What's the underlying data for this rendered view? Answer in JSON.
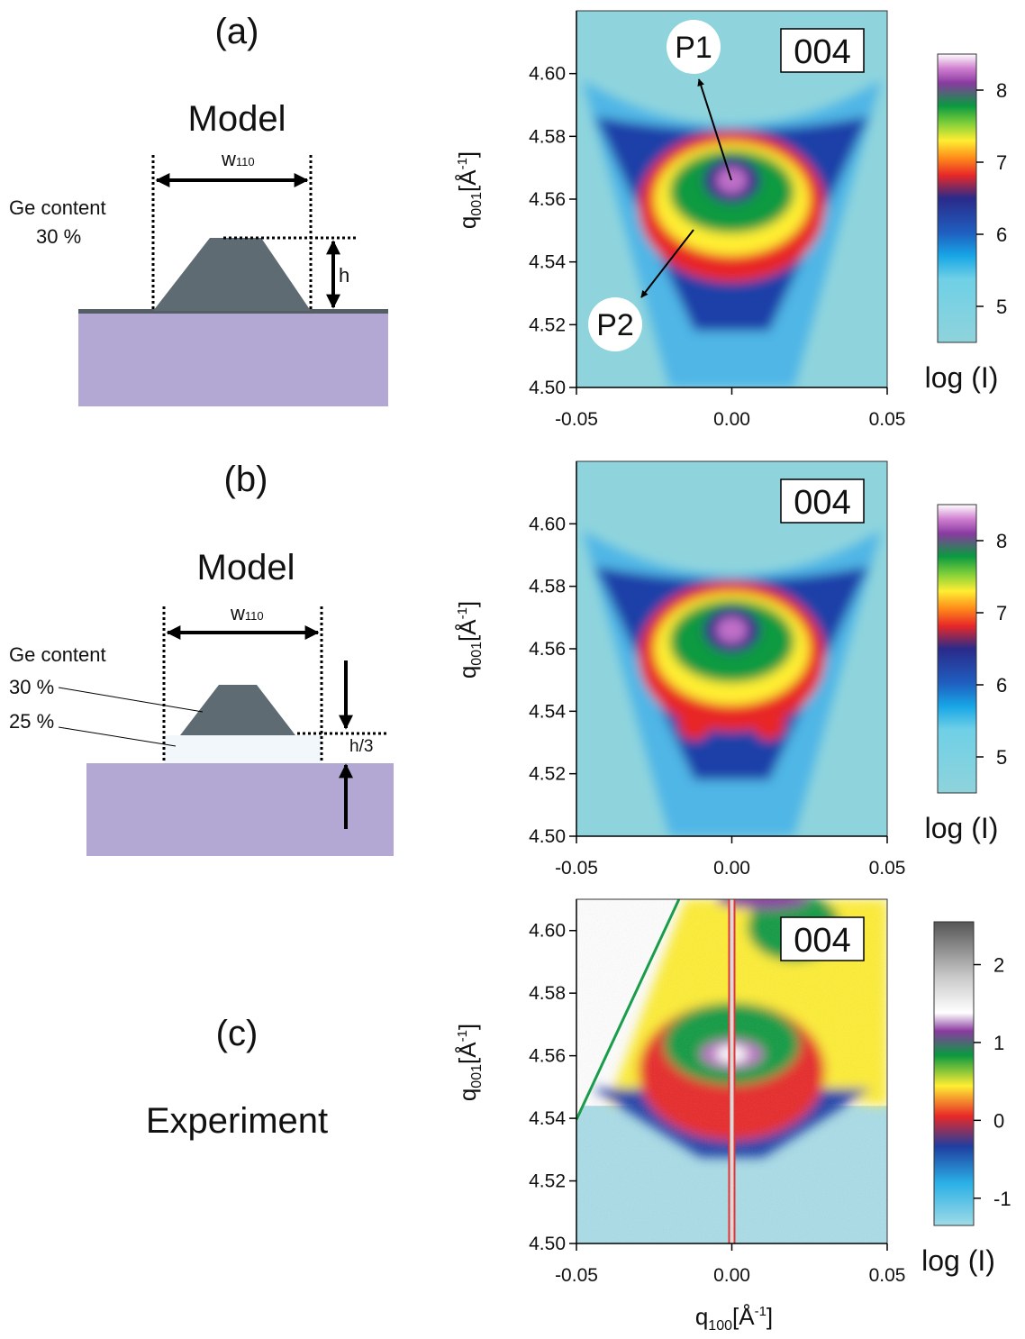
{
  "panels": [
    {
      "label": "(a)",
      "title": "Model",
      "width_label": {
        "base": "w",
        "sub": "110"
      },
      "ge_label": "Ge content",
      "contents": [
        "30 %"
      ],
      "height_label": "h",
      "plot": {
        "tag": "004",
        "annotations": [
          "P1",
          "P2"
        ],
        "xlim": [
          -0.05,
          0.05
        ],
        "xticks": [
          -0.05,
          {
            "value": 0,
            "label": "0.00"
          },
          0.05
        ],
        "ylim": [
          4.5,
          4.62
        ],
        "yticks": [
          {
            "value": 4.5,
            "label": "4.50"
          },
          4.52,
          4.54,
          4.56,
          4.58,
          {
            "value": 4.6,
            "label": "4.60"
          }
        ],
        "ylabel": {
          "base": "q",
          "sub": "001",
          "unit": "[Å",
          "sup": "-1",
          "close": "]"
        },
        "colorbar": {
          "lim": [
            4.5,
            8.5
          ],
          "ticks": [
            5,
            6,
            7,
            8
          ],
          "label": "log (I)"
        }
      }
    },
    {
      "label": "(b)",
      "title": "Model",
      "width_label": {
        "base": "w",
        "sub": "110"
      },
      "ge_label": "Ge content",
      "contents": [
        "30 %",
        "25 %"
      ],
      "height_label": "h/3",
      "plot": {
        "tag": "004",
        "xlim": [
          -0.05,
          0.05
        ],
        "xticks": [
          -0.05,
          {
            "value": 0,
            "label": "0.00"
          },
          0.05
        ],
        "ylim": [
          4.5,
          4.62
        ],
        "yticks": [
          {
            "value": 4.5,
            "label": "4.50"
          },
          4.52,
          4.54,
          4.56,
          4.58,
          {
            "value": 4.6,
            "label": "4.60"
          }
        ],
        "ylabel": {
          "base": "q",
          "sub": "001",
          "unit": "[Å",
          "sup": "-1",
          "close": "]"
        },
        "colorbar": {
          "lim": [
            4.5,
            8.5
          ],
          "ticks": [
            5,
            6,
            7,
            8
          ],
          "label": "log (I)"
        }
      }
    },
    {
      "label": "(c)",
      "title": "Experiment",
      "plot": {
        "tag": "004",
        "xlim": [
          -0.05,
          0.05
        ],
        "xticks": [
          -0.05,
          {
            "value": 0,
            "label": "0.00"
          },
          0.05
        ],
        "ylim": [
          4.5,
          4.61
        ],
        "yticks": [
          {
            "value": 4.5,
            "label": "4.50"
          },
          4.52,
          4.54,
          4.56,
          4.58,
          {
            "value": 4.6,
            "label": "4.60"
          }
        ],
        "ylabel": {
          "base": "q",
          "sub": "001",
          "unit": "[Å",
          "sup": "-1",
          "close": "]"
        },
        "xlabel": {
          "base": "q",
          "sub": "100",
          "unit": "[Å",
          "sup": "-1",
          "close": "]"
        },
        "colorbar": {
          "lim": [
            -1.35,
            2.55
          ],
          "ticks": [
            -1,
            0,
            1,
            2
          ],
          "label": "log (I)"
        }
      }
    }
  ]
}
